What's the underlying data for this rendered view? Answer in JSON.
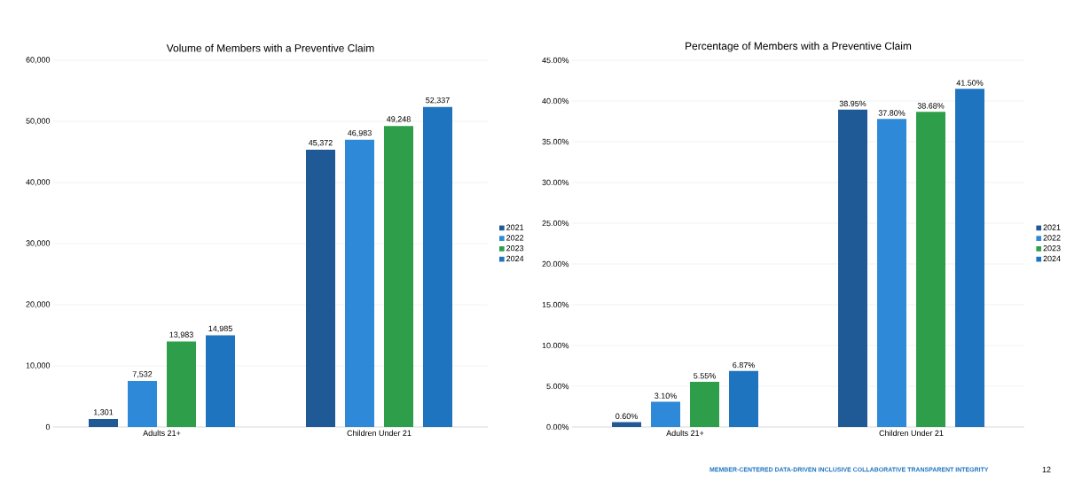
{
  "chart_data": [
    {
      "type": "bar",
      "title": "Volume of Members with a Preventive Claim",
      "categories": [
        "Adults 21+",
        "Children Under 21"
      ],
      "series": [
        {
          "name": "2021",
          "color": "#1f5a96",
          "values": [
            1301,
            45372
          ],
          "value_labels": [
            "1,301",
            "45,372"
          ]
        },
        {
          "name": "2022",
          "color": "#2e8ad8",
          "values": [
            7532,
            46983
          ],
          "value_labels": [
            "7,532",
            "46,983"
          ]
        },
        {
          "name": "2023",
          "color": "#2e9e4a",
          "values": [
            13983,
            49248
          ],
          "value_labels": [
            "13,983",
            "49,248"
          ]
        },
        {
          "name": "2024",
          "color": "#1f74c0",
          "values": [
            14985,
            52337
          ],
          "value_labels": [
            "14,985",
            "52,337"
          ]
        }
      ],
      "ylim": [
        0,
        60000
      ],
      "yticks": [
        0,
        {
          "value": 10000,
          "label": "10,000"
        },
        {
          "value": 20000,
          "label": "20,000"
        },
        {
          "value": 30000,
          "label": "30,000"
        },
        {
          "value": 40000,
          "label": "40,000"
        },
        {
          "value": 50000,
          "label": "50,000"
        },
        {
          "value": 60000,
          "label": "60,000"
        }
      ],
      "grid": "y",
      "legend": "right"
    },
    {
      "type": "bar",
      "title": "Percentage of Members with a Preventive Claim",
      "categories": [
        "Adults 21+",
        "Children Under 21"
      ],
      "series": [
        {
          "name": "2021",
          "color": "#1f5a96",
          "values": [
            0.6,
            38.95
          ],
          "value_labels": [
            "0.60%",
            "38.95%"
          ]
        },
        {
          "name": "2022",
          "color": "#2e8ad8",
          "values": [
            3.1,
            37.8
          ],
          "value_labels": [
            "3.10%",
            "37.80%"
          ]
        },
        {
          "name": "2023",
          "color": "#2e9e4a",
          "values": [
            5.55,
            38.68
          ],
          "value_labels": [
            "5.55%",
            "38.68%"
          ]
        },
        {
          "name": "2024",
          "color": "#1f74c0",
          "values": [
            6.87,
            41.5
          ],
          "value_labels": [
            "6.87%",
            "41.50%"
          ]
        }
      ],
      "ylim": [
        0,
        45
      ],
      "yticks": [
        {
          "value": 0,
          "label": "0.00%"
        },
        {
          "value": 5,
          "label": "5.00%"
        },
        {
          "value": 10,
          "label": "10.00%"
        },
        {
          "value": 15,
          "label": "15.00%"
        },
        {
          "value": 20,
          "label": "20.00%"
        },
        {
          "value": 25,
          "label": "25.00%"
        },
        {
          "value": 30,
          "label": "30.00%"
        },
        {
          "value": 35,
          "label": "35.00%"
        },
        {
          "value": 40,
          "label": "40.00%"
        },
        {
          "value": 45,
          "label": "45.00%"
        }
      ],
      "grid": "y",
      "legend": "right",
      "annotations": [
        "MEMBER-CENTERED DATA-DRIVEN INCLUSIVE COLLABORATIVE TRANSPARENT INTEGRITY",
        "12"
      ]
    }
  ]
}
